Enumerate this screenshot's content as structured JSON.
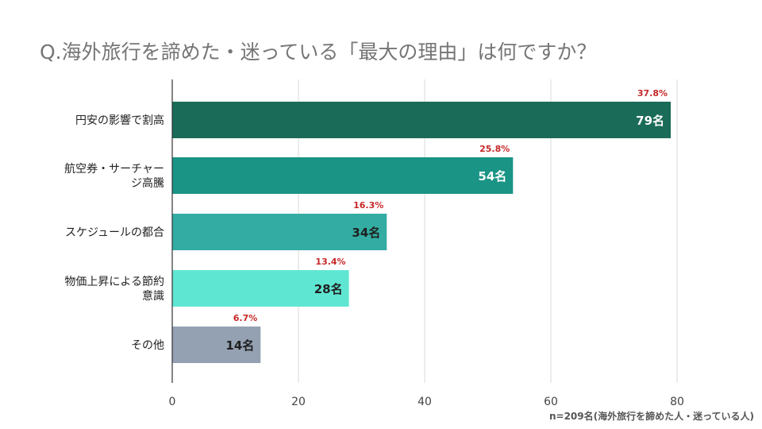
{
  "chart_data": {
    "type": "bar",
    "orientation": "horizontal",
    "title": "Q.海外旅行を諦めた・迷っている「最大の理由」は何ですか？",
    "categories": [
      [
        "円安の影響で割高"
      ],
      [
        "航空券・サーチャー",
        "ジ高騰"
      ],
      [
        "スケジュールの都合"
      ],
      [
        "物価上昇による節約",
        "意識"
      ],
      [
        "その他"
      ]
    ],
    "values": [
      79,
      54,
      34,
      28,
      14
    ],
    "value_labels": [
      "79名",
      "54名",
      "34名",
      "28名",
      "14名"
    ],
    "percent_labels": [
      "37.8%",
      "25.8%",
      "16.3%",
      "13.4%",
      "6.7%"
    ],
    "colors": [
      "#1a6b58",
      "#1a9485",
      "#33ada3",
      "#5fe6d3",
      "#94a1b2"
    ],
    "value_label_colors": [
      "#ffffff",
      "#ffffff",
      "#1f1f1f",
      "#1f1f1f",
      "#1f1f1f"
    ],
    "percent_color": "#c62828",
    "xlim": [
      0,
      80
    ],
    "xticks": [
      0,
      20,
      40,
      60,
      80
    ],
    "grid": true
  },
  "footnote": "n=209名(海外旅行を諦めた人・迷っている人)"
}
